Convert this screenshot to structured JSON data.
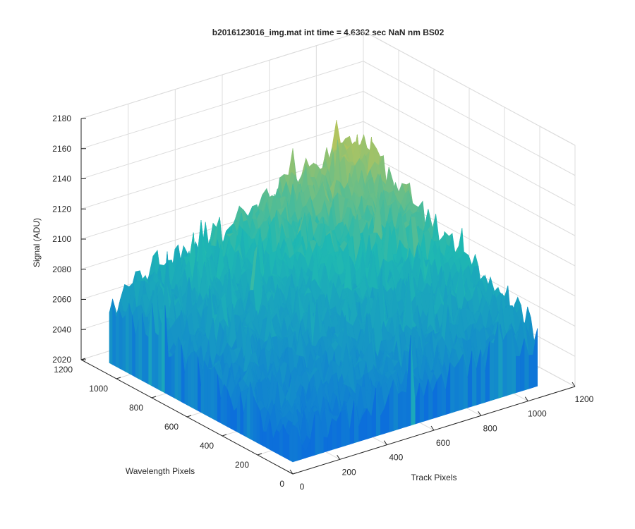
{
  "chart_data": {
    "type": "surface",
    "title": "b2016123016_img.mat int time = 4.6362 sec  NaN nm BS02",
    "xlabel": "Track Pixels",
    "ylabel": "Wavelength Pixels",
    "zlabel": "Signal (ADU)",
    "xlim": [
      0,
      1200
    ],
    "ylim": [
      0,
      1200
    ],
    "zlim": [
      2020,
      2180
    ],
    "xticks": [
      "0",
      "200",
      "400",
      "600",
      "800",
      "1000",
      "1200"
    ],
    "yticks": [
      "0",
      "200",
      "400",
      "600",
      "800",
      "1000",
      "1200"
    ],
    "zticks": [
      "2020",
      "2040",
      "2060",
      "2080",
      "2100",
      "2120",
      "2140",
      "2160",
      "2180"
    ],
    "grid": true,
    "colormap": "parula",
    "colors": {
      "low": "#0c6fdb",
      "mid": "#1fb8b2",
      "high": "#f2c93a"
    },
    "surface_extent": {
      "x": [
        0,
        1040
      ],
      "y": [
        0,
        1040
      ]
    },
    "signal_at_corners": {
      "x0_y0": 2042,
      "x1040_y0": 2062,
      "x0_y1040": 2068,
      "x1040_y1040": 2126
    },
    "noise_amplitude": 12
  }
}
